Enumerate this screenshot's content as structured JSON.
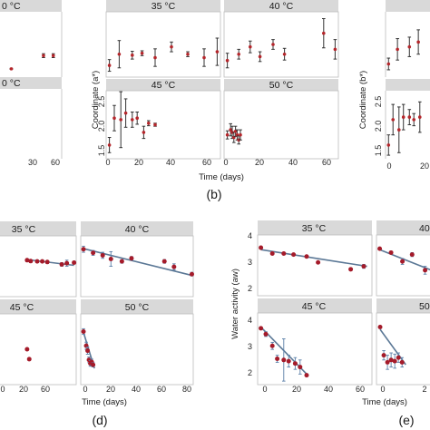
{
  "style": {
    "point_color": "#b5262b",
    "point_color_b": "#a51b2a",
    "errorbar_color": "#333333",
    "fit_line_color": "#5b7896",
    "strip_color": "#d9d9d9"
  },
  "panel_labels": {
    "b": "(b)",
    "d": "(d)",
    "e": "(e)"
  },
  "chart_data": [
    {
      "id": "a-partial",
      "type": "scatter",
      "xlabel": "",
      "strips": {
        "top": "0 °C",
        "bottom": "0 °C"
      },
      "x_ticks": [
        "30",
        "60"
      ],
      "series": [
        {
          "facet": "top",
          "x": [
            32,
            55,
            62
          ],
          "y": [
            1.55,
            1.82,
            1.82
          ],
          "err": [
            0.01,
            0.04,
            0.04
          ]
        }
      ]
    },
    {
      "id": "b",
      "type": "scatter",
      "ylabel": "Coordinate (a*)",
      "xlabel": "Time (days)",
      "facets": [
        "35 °C",
        "40 °C",
        "45 °C",
        "50 °C"
      ],
      "x_ticks": [
        "0",
        "20",
        "40",
        "60"
      ],
      "y_ticks": [
        "1.5",
        "2.0",
        "2.5"
      ],
      "xlim": [
        -2,
        68
      ],
      "ylim": [
        1.38,
        2.72
      ],
      "series": [
        {
          "facet": "35 °C",
          "x": [
            0,
            6,
            14,
            20,
            28,
            38,
            48,
            58,
            66
          ],
          "y": [
            1.62,
            1.85,
            1.83,
            1.87,
            1.78,
            2.0,
            1.85,
            1.78,
            1.9
          ],
          "err": [
            0.12,
            0.28,
            0.08,
            0.05,
            0.18,
            0.1,
            0.05,
            0.18,
            0.28
          ]
        },
        {
          "facet": "40 °C",
          "x": [
            0,
            7,
            14,
            20,
            28,
            35,
            59,
            66
          ],
          "y": [
            1.72,
            1.85,
            2.0,
            1.8,
            2.05,
            1.85,
            2.28,
            1.95
          ],
          "err": [
            0.15,
            0.1,
            0.12,
            0.1,
            0.1,
            0.12,
            0.3,
            0.2
          ]
        },
        {
          "facet": "45 °C",
          "x": [
            0,
            3,
            7,
            10,
            14,
            17,
            21,
            24,
            28
          ],
          "y": [
            1.65,
            2.18,
            2.15,
            2.28,
            2.15,
            2.18,
            1.9,
            2.08,
            2.05
          ],
          "err": [
            0.15,
            0.25,
            0.55,
            0.28,
            0.15,
            0.12,
            0.12,
            0.05,
            0.03
          ]
        },
        {
          "facet": "50 °C",
          "x": [
            0,
            2,
            3,
            4,
            5,
            6,
            7,
            8
          ],
          "y": [
            1.85,
            1.95,
            1.9,
            1.8,
            1.92,
            1.85,
            1.75,
            1.85
          ],
          "err": [
            0.08,
            0.12,
            0.12,
            0.1,
            0.1,
            0.1,
            0.08,
            0.1
          ]
        }
      ]
    },
    {
      "id": "c-partial",
      "type": "scatter",
      "ylabel": "Coordinate (b*)",
      "y_ticks": [
        "1.5",
        "2.0",
        "2.5"
      ],
      "x_ticks": [
        "0",
        "20"
      ],
      "series": [
        {
          "facet": "top",
          "x": [
            0,
            6,
            14,
            20
          ],
          "y": [
            1.65,
            1.95,
            2.0,
            2.1
          ],
          "err": [
            0.12,
            0.22,
            0.2,
            0.25
          ]
        },
        {
          "facet": "bottom",
          "x": [
            0,
            3,
            7,
            10,
            14,
            17,
            21
          ],
          "y": [
            1.65,
            2.15,
            1.95,
            2.2,
            2.2,
            2.15,
            2.2
          ],
          "err": [
            0.2,
            0.3,
            0.45,
            0.25,
            0.15,
            0.12,
            0.3
          ]
        }
      ]
    },
    {
      "id": "d",
      "type": "scatter",
      "xlabel": "Time (days)",
      "facets": [
        "35 °C",
        "40 °C",
        "45 °C",
        "50 °C"
      ],
      "x_ticks": [
        "0",
        "20",
        "40",
        "60",
        "80"
      ],
      "x_ticks_left": [
        "0",
        "20",
        "40",
        "60"
      ],
      "xlim": [
        -2,
        80
      ],
      "ylim": [
        0,
        10
      ],
      "series": [
        {
          "facet": "35 °C",
          "x": [
            0,
            5,
            14,
            21,
            28,
            48,
            55,
            65
          ],
          "y": [
            6.0,
            5.85,
            5.8,
            5.8,
            5.7,
            5.3,
            5.5,
            5.6
          ],
          "err": [
            0.2,
            0.2,
            0.2,
            0.2,
            0.2,
            0.3,
            0.5,
            0.2
          ],
          "fit": [
            [
              0,
              6.1
            ],
            [
              65,
              5.15
            ]
          ]
        },
        {
          "facet": "40 °C",
          "x": [
            0,
            7,
            14,
            20,
            28,
            35,
            59,
            66,
            79
          ],
          "y": [
            7.8,
            7.2,
            6.8,
            6.2,
            5.8,
            6.3,
            5.8,
            4.9,
            3.7
          ],
          "err": [
            0.5,
            0.4,
            0.5,
            1.2,
            0.3,
            0.3,
            0.3,
            0.5,
            0.3
          ],
          "fit": [
            [
              0,
              7.9
            ],
            [
              79,
              3.5
            ]
          ]
        },
        {
          "facet": "45 °C",
          "x": [
            0,
            3
          ],
          "y": [
            5.0,
            3.6
          ],
          "err": [
            0.1,
            0.1
          ]
        },
        {
          "facet": "50 °C",
          "x": [
            0,
            2,
            3,
            4,
            5,
            6,
            7
          ],
          "y": [
            7.5,
            5.5,
            4.8,
            3.5,
            3.0,
            3.2,
            2.8
          ],
          "err": [
            0.4,
            0.5,
            0.5,
            0.4,
            0.4,
            0.4,
            0.3
          ],
          "fit": [
            [
              0,
              7.4
            ],
            [
              8,
              2.3
            ]
          ]
        }
      ]
    },
    {
      "id": "e",
      "type": "scatter",
      "ylabel": "Water activity (aw)",
      "xlabel": "Time (days)",
      "facets": [
        "35 °C",
        "40 °C",
        "45 °C",
        "50 °C"
      ],
      "strips_right_partial": [
        "40",
        "50"
      ],
      "y_ticks": [
        "2",
        "3",
        "4"
      ],
      "x_ticks": [
        "0",
        "20",
        "40",
        "60"
      ],
      "x_ticks_right": [
        "0",
        "2"
      ],
      "xlim": [
        -2,
        68
      ],
      "ylim": [
        1.25,
        4.35
      ],
      "series": [
        {
          "facet": "35 °C",
          "x": [
            0,
            7,
            14,
            20,
            28,
            35,
            55,
            63
          ],
          "y": [
            3.65,
            3.35,
            3.35,
            3.3,
            3.2,
            2.9,
            2.55,
            2.7
          ],
          "err": [
            0.05,
            0.05,
            0.05,
            0.05,
            0.05,
            0.05,
            0.05,
            0.1
          ],
          "fit": [
            [
              0,
              3.55
            ],
            [
              65,
              2.7
            ]
          ]
        },
        {
          "facet": "40 °C",
          "x": [
            0,
            7,
            14,
            20,
            28,
            35
          ],
          "y": [
            3.6,
            3.4,
            2.95,
            3.3,
            2.5,
            2.45
          ],
          "err": [
            0.05,
            0.05,
            0.15,
            0.1,
            0.2,
            0.1
          ],
          "fit": [
            [
              0,
              3.55
            ],
            [
              35,
              2.4
            ]
          ]
        },
        {
          "facet": "45 °C",
          "x": [
            0,
            3,
            7,
            10,
            14,
            17,
            21,
            24,
            28
          ],
          "y": [
            3.65,
            3.4,
            2.9,
            2.35,
            2.3,
            2.25,
            2.15,
            2.0,
            1.65
          ],
          "err": [
            0.05,
            0.1,
            0.15,
            0.15,
            0.9,
            0.25,
            0.25,
            0.3,
            0.05
          ],
          "fit": [
            [
              0,
              3.7
            ],
            [
              28,
              1.7
            ]
          ]
        },
        {
          "facet": "50 °C",
          "x": [
            0,
            1,
            2,
            3,
            4,
            5,
            6
          ],
          "y": [
            3.7,
            2.5,
            2.2,
            2.3,
            2.25,
            2.4,
            2.2
          ],
          "err": [
            0.05,
            0.2,
            0.3,
            0.3,
            0.3,
            0.2,
            0.2
          ],
          "fit": [
            [
              0,
              3.6
            ],
            [
              7,
              2.1
            ]
          ]
        }
      ]
    }
  ]
}
